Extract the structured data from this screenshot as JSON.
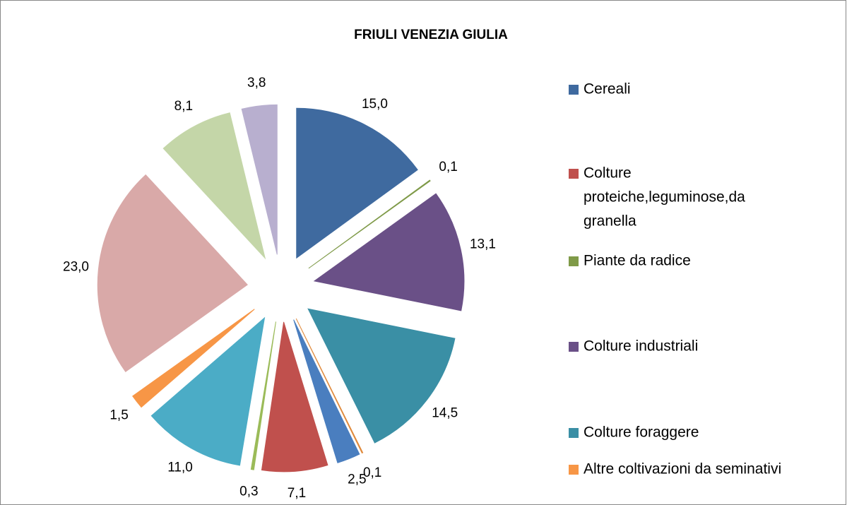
{
  "chart_data": {
    "type": "pie",
    "title": "FRIULI VENEZIA GIULIA",
    "values": [
      15.0,
      0.1,
      13.1,
      14.5,
      0.1,
      2.5,
      7.1,
      0.3,
      11.0,
      1.5,
      23.0,
      8.1,
      3.8
    ],
    "value_labels": [
      "15,0",
      "0,1",
      "13,1",
      "14,5",
      "0,1",
      "2,5",
      "7,1",
      "0,3",
      "11,0",
      "1,5",
      "23,0",
      "8,1",
      "3,8"
    ],
    "colors": [
      "#3f6a9f",
      "#7f9a48",
      "#6a5087",
      "#3a8fa5",
      "#e08a3c",
      "#4a7ebf",
      "#c0504d",
      "#9bbb59",
      "#4bacc6",
      "#f79646",
      "#d9a9a8",
      "#c4d6a8",
      "#b8afcf"
    ],
    "legend": [
      {
        "lines": [
          "Cereali"
        ],
        "color": "#3f6a9f"
      },
      {
        "lines": [
          "Colture",
          "proteiche,leguminose,da",
          "granella"
        ],
        "color": "#c0504d"
      },
      {
        "lines": [
          "Piante da radice"
        ],
        "color": "#7f9a48"
      },
      {
        "lines": [
          "Colture industriali"
        ],
        "color": "#6a5087"
      },
      {
        "lines": [
          "Colture foraggere"
        ],
        "color": "#3a8fa5"
      },
      {
        "lines": [
          "Altre coltivazioni da seminativi"
        ],
        "color": "#f79646"
      }
    ]
  }
}
